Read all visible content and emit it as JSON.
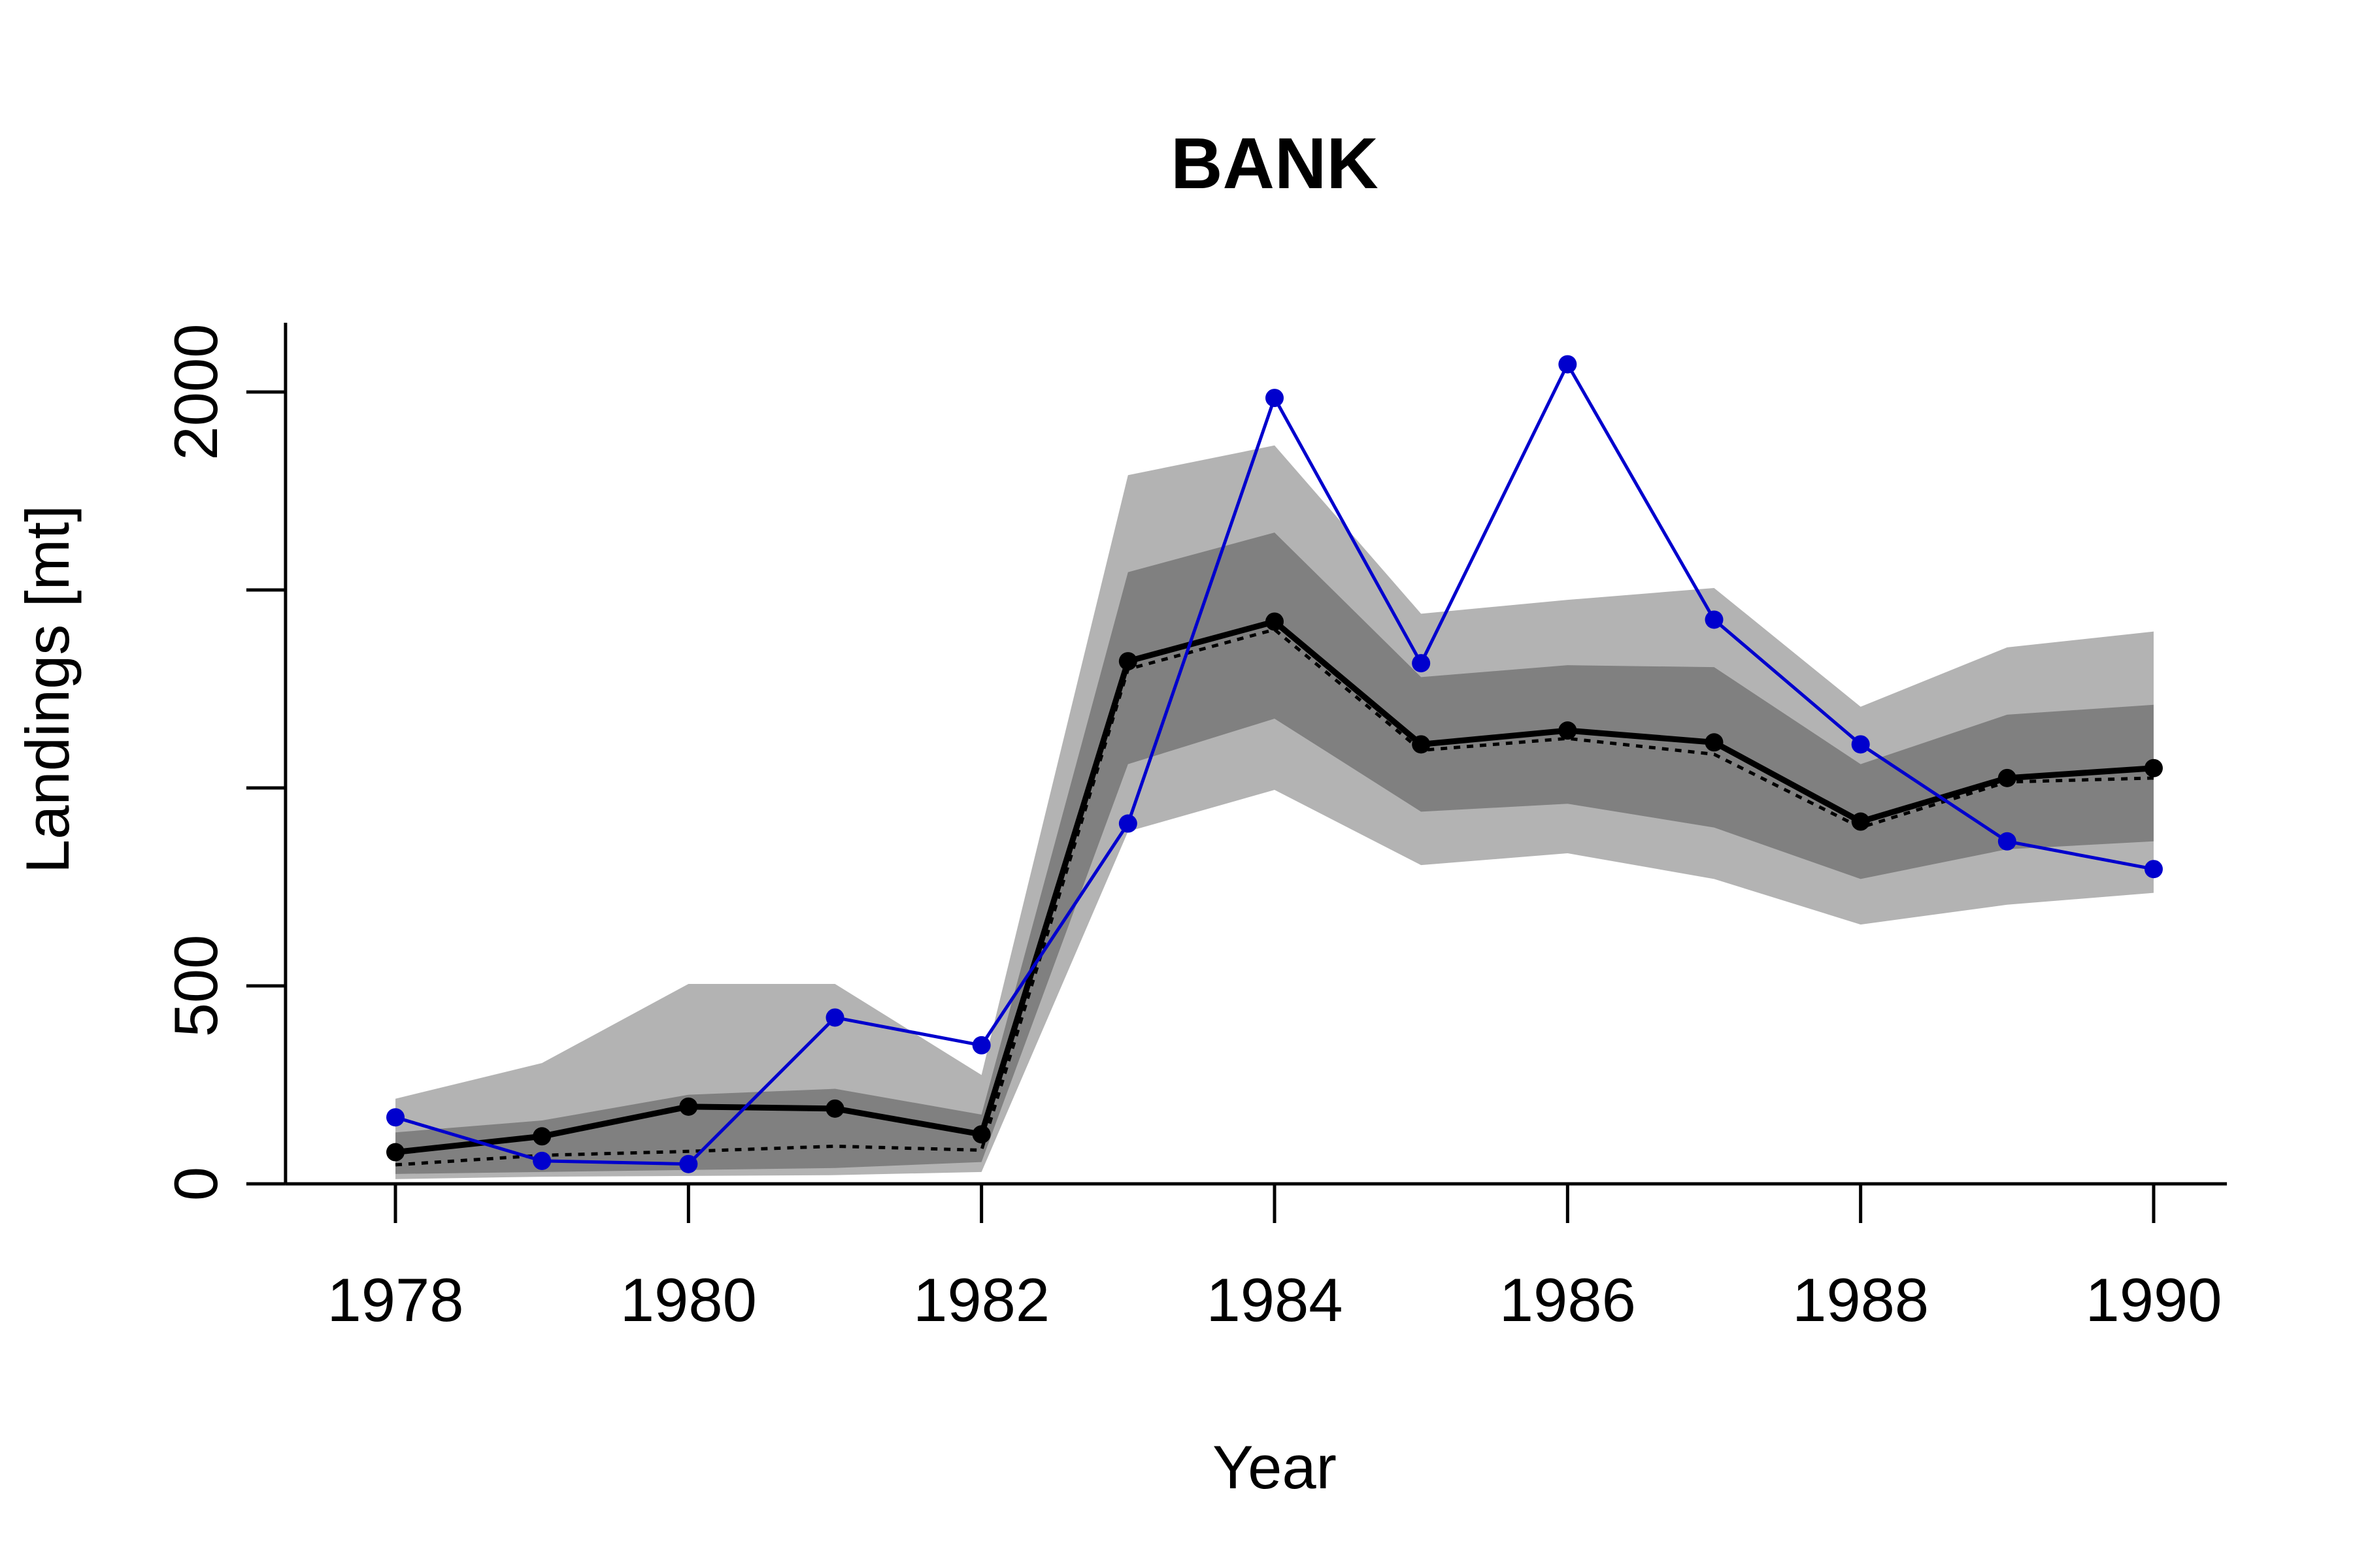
{
  "chart_data": {
    "type": "line",
    "title": "BANK",
    "xlabel": "Year",
    "ylabel": "Landings [mt]",
    "xlim": [
      1977.25,
      1990.5
    ],
    "ylim": [
      0,
      2175
    ],
    "x_ticks": [
      1978,
      1980,
      1982,
      1984,
      1986,
      1988,
      1990
    ],
    "y_ticks": [
      0,
      500,
      1000,
      1500,
      2000
    ],
    "y_tick_labels": [
      "0",
      "500",
      "",
      "",
      "2000"
    ],
    "x": [
      1978,
      1979,
      1980,
      1981,
      1982,
      1983,
      1984,
      1985,
      1986,
      1987,
      1988,
      1989,
      1990
    ],
    "bands": [
      {
        "role": "outer",
        "color": "#b3b3b3",
        "lower": [
          12,
          18,
          20,
          22,
          30,
          890,
          995,
          805,
          835,
          770,
          655,
          705,
          735
        ],
        "upper": [
          215,
          305,
          505,
          505,
          275,
          1790,
          1865,
          1440,
          1475,
          1505,
          1205,
          1355,
          1395
        ]
      },
      {
        "role": "inner",
        "color": "#808080",
        "lower": [
          25,
          30,
          35,
          40,
          55,
          1060,
          1175,
          940,
          960,
          900,
          770,
          845,
          865
        ],
        "upper": [
          130,
          160,
          225,
          240,
          175,
          1545,
          1645,
          1280,
          1310,
          1305,
          1060,
          1185,
          1210
        ]
      }
    ],
    "series": [
      {
        "role": "median",
        "color": "#000000",
        "style": "solid-thick",
        "markers": true,
        "values": [
          80,
          120,
          195,
          190,
          125,
          1320,
          1420,
          1110,
          1145,
          1115,
          915,
          1025,
          1050
        ]
      },
      {
        "role": "mean",
        "color": "#000000",
        "style": "dotted",
        "markers": false,
        "values": [
          48,
          72,
          82,
          95,
          85,
          1300,
          1400,
          1095,
          1125,
          1085,
          900,
          1015,
          1025
        ]
      },
      {
        "role": "observed",
        "color": "#0000cd",
        "style": "solid",
        "markers": true,
        "values": [
          168,
          58,
          50,
          420,
          350,
          910,
          1985,
          1315,
          2070,
          1425,
          1110,
          865,
          795
        ]
      }
    ],
    "grid": false,
    "legend": "none"
  }
}
